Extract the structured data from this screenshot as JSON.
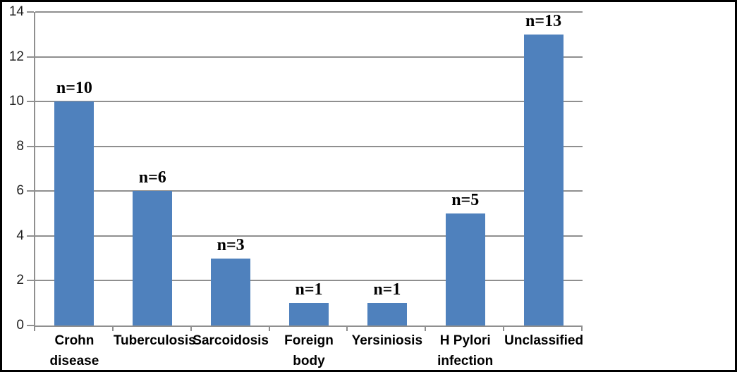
{
  "chart_data": {
    "type": "bar",
    "title": "",
    "xlabel": "",
    "ylabel": "",
    "categories": [
      "Crohn disease",
      "Tuberculosis",
      "Sarcoidosis",
      "Foreign body",
      "Yersiniosis",
      "H Pylori infection",
      "Unclassified"
    ],
    "values": [
      10,
      6,
      3,
      1,
      1,
      5,
      13
    ],
    "bar_labels": [
      "n=10",
      "n=6",
      "n=3",
      "n=1",
      "n=1",
      "n=5",
      "n=13"
    ],
    "yticks": [
      0,
      2,
      4,
      6,
      8,
      10,
      12,
      14
    ],
    "ylim": [
      0,
      14
    ],
    "grid": true,
    "legend": false,
    "colors": {
      "bar_fill": "#4F81BD",
      "gridline": "#8f8f8f",
      "axis": "#8f8f8f",
      "tick_label": "#1f1f1f",
      "category_label": "#000000",
      "data_label": "#000000",
      "frame_border": "#000000",
      "background": "#ffffff"
    }
  }
}
